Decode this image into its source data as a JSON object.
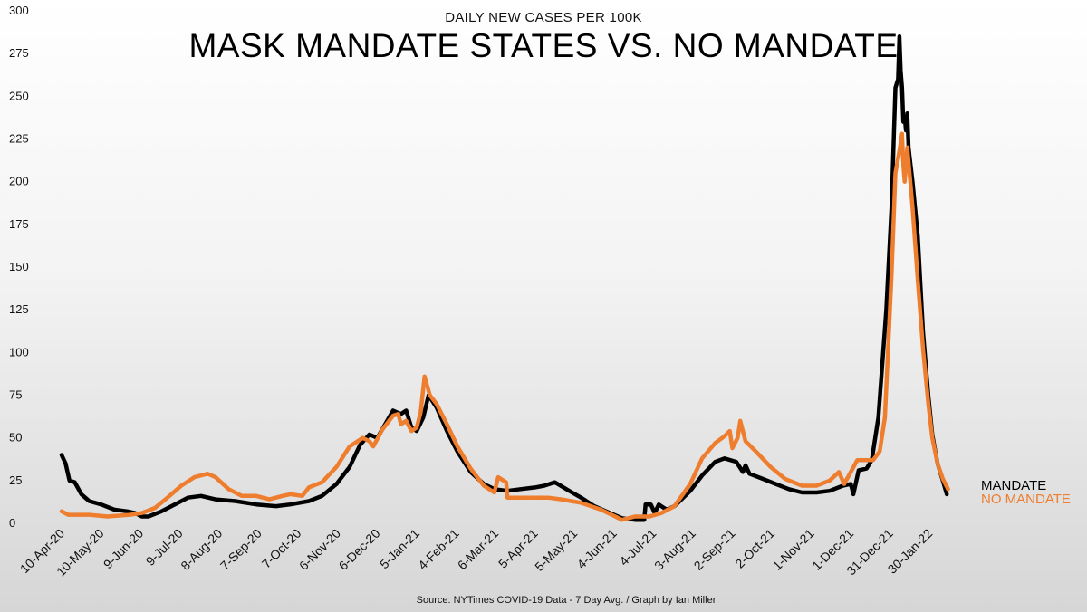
{
  "chart_data": {
    "type": "line",
    "subtitle": "DAILY NEW CASES PER 100K",
    "title": "MASK MANDATE STATES VS. NO MANDATE",
    "source": "Source: NYTimes COVID-19 Data - 7 Day Avg. / Graph by Ian Miller",
    "ylim": [
      0,
      300
    ],
    "y_ticks": [
      0,
      25,
      50,
      75,
      100,
      125,
      150,
      175,
      200,
      225,
      250,
      275,
      300
    ],
    "x_range": [
      "2020-04-10",
      "2022-03-08"
    ],
    "x_ticks": [
      {
        "date": "2020-04-10",
        "label": "10-Apr-20"
      },
      {
        "date": "2020-05-10",
        "label": "10-May-20"
      },
      {
        "date": "2020-06-09",
        "label": "9-Jun-20"
      },
      {
        "date": "2020-07-09",
        "label": "9-Jul-20"
      },
      {
        "date": "2020-08-08",
        "label": "8-Aug-20"
      },
      {
        "date": "2020-09-07",
        "label": "7-Sep-20"
      },
      {
        "date": "2020-10-07",
        "label": "7-Oct-20"
      },
      {
        "date": "2020-11-06",
        "label": "6-Nov-20"
      },
      {
        "date": "2020-12-06",
        "label": "6-Dec-20"
      },
      {
        "date": "2021-01-05",
        "label": "5-Jan-21"
      },
      {
        "date": "2021-02-04",
        "label": "4-Feb-21"
      },
      {
        "date": "2021-03-06",
        "label": "6-Mar-21"
      },
      {
        "date": "2021-04-05",
        "label": "5-Apr-21"
      },
      {
        "date": "2021-05-05",
        "label": "5-May-21"
      },
      {
        "date": "2021-06-04",
        "label": "4-Jun-21"
      },
      {
        "date": "2021-07-04",
        "label": "4-Jul-21"
      },
      {
        "date": "2021-08-03",
        "label": "3-Aug-21"
      },
      {
        "date": "2021-09-02",
        "label": "2-Sep-21"
      },
      {
        "date": "2021-10-02",
        "label": "2-Oct-21"
      },
      {
        "date": "2021-11-01",
        "label": "1-Nov-21"
      },
      {
        "date": "2021-12-01",
        "label": "1-Dec-21"
      },
      {
        "date": "2021-12-31",
        "label": "31-Dec-21"
      },
      {
        "date": "2022-01-30",
        "label": "30-Jan-22"
      }
    ],
    "series": [
      {
        "name": "MANDATE",
        "color": "#000000",
        "points": [
          [
            "2020-04-10",
            40
          ],
          [
            "2020-04-13",
            35
          ],
          [
            "2020-04-16",
            25
          ],
          [
            "2020-04-20",
            24
          ],
          [
            "2020-04-25",
            17
          ],
          [
            "2020-05-01",
            13
          ],
          [
            "2020-05-10",
            11
          ],
          [
            "2020-05-20",
            8
          ],
          [
            "2020-05-30",
            7
          ],
          [
            "2020-06-05",
            6
          ],
          [
            "2020-06-10",
            4
          ],
          [
            "2020-06-15",
            4
          ],
          [
            "2020-06-25",
            7
          ],
          [
            "2020-07-05",
            11
          ],
          [
            "2020-07-15",
            15
          ],
          [
            "2020-07-25",
            16
          ],
          [
            "2020-08-05",
            14
          ],
          [
            "2020-08-20",
            13
          ],
          [
            "2020-09-05",
            11
          ],
          [
            "2020-09-20",
            10
          ],
          [
            "2020-10-01",
            11
          ],
          [
            "2020-10-15",
            13
          ],
          [
            "2020-10-25",
            16
          ],
          [
            "2020-11-05",
            23
          ],
          [
            "2020-11-15",
            33
          ],
          [
            "2020-11-23",
            46
          ],
          [
            "2020-11-30",
            52
          ],
          [
            "2020-12-06",
            50
          ],
          [
            "2020-12-12",
            58
          ],
          [
            "2020-12-18",
            66
          ],
          [
            "2020-12-24",
            64
          ],
          [
            "2020-12-28",
            66
          ],
          [
            "2021-01-01",
            56
          ],
          [
            "2021-01-05",
            54
          ],
          [
            "2021-01-10",
            62
          ],
          [
            "2021-01-14",
            75
          ],
          [
            "2021-01-20",
            68
          ],
          [
            "2021-01-28",
            54
          ],
          [
            "2021-02-05",
            42
          ],
          [
            "2021-02-15",
            30
          ],
          [
            "2021-02-25",
            23
          ],
          [
            "2021-03-05",
            20
          ],
          [
            "2021-03-15",
            19
          ],
          [
            "2021-03-25",
            20
          ],
          [
            "2021-04-05",
            21
          ],
          [
            "2021-04-12",
            22
          ],
          [
            "2021-04-20",
            24
          ],
          [
            "2021-05-01",
            19
          ],
          [
            "2021-05-10",
            15
          ],
          [
            "2021-05-20",
            10
          ],
          [
            "2021-06-01",
            6
          ],
          [
            "2021-06-10",
            3
          ],
          [
            "2021-06-20",
            2
          ],
          [
            "2021-06-27",
            2
          ],
          [
            "2021-06-28",
            11
          ],
          [
            "2021-07-02",
            11
          ],
          [
            "2021-07-05",
            6
          ],
          [
            "2021-07-08",
            11
          ],
          [
            "2021-07-14",
            8
          ],
          [
            "2021-07-20",
            10
          ],
          [
            "2021-08-01",
            19
          ],
          [
            "2021-08-10",
            28
          ],
          [
            "2021-08-20",
            36
          ],
          [
            "2021-08-27",
            38
          ],
          [
            "2021-09-05",
            36
          ],
          [
            "2021-09-10",
            30
          ],
          [
            "2021-09-12",
            34
          ],
          [
            "2021-09-15",
            29
          ],
          [
            "2021-09-25",
            26
          ],
          [
            "2021-10-05",
            23
          ],
          [
            "2021-10-15",
            20
          ],
          [
            "2021-10-25",
            18
          ],
          [
            "2021-11-05",
            18
          ],
          [
            "2021-11-15",
            19
          ],
          [
            "2021-11-25",
            22
          ],
          [
            "2021-12-01",
            23
          ],
          [
            "2021-12-03",
            17
          ],
          [
            "2021-12-07",
            31
          ],
          [
            "2021-12-13",
            32
          ],
          [
            "2021-12-17",
            37
          ],
          [
            "2021-12-22",
            62
          ],
          [
            "2021-12-28",
            125
          ],
          [
            "2022-01-01",
            185
          ],
          [
            "2022-01-04",
            255
          ],
          [
            "2022-01-06",
            260
          ],
          [
            "2022-01-07",
            285
          ],
          [
            "2022-01-08",
            265
          ],
          [
            "2022-01-09",
            255
          ],
          [
            "2022-01-10",
            235
          ],
          [
            "2022-01-11",
            238
          ],
          [
            "2022-01-12",
            230
          ],
          [
            "2022-01-13",
            240
          ],
          [
            "2022-01-14",
            220
          ],
          [
            "2022-01-17",
            200
          ],
          [
            "2022-01-21",
            168
          ],
          [
            "2022-01-25",
            112
          ],
          [
            "2022-01-29",
            75
          ],
          [
            "2022-02-01",
            52
          ],
          [
            "2022-02-05",
            35
          ],
          [
            "2022-02-09",
            25
          ],
          [
            "2022-02-12",
            17
          ]
        ]
      },
      {
        "name": "NO MANDATE",
        "color": "#ee7d2e",
        "points": [
          [
            "2020-04-10",
            7
          ],
          [
            "2020-04-15",
            5
          ],
          [
            "2020-04-20",
            5
          ],
          [
            "2020-05-01",
            5
          ],
          [
            "2020-05-15",
            4
          ],
          [
            "2020-06-01",
            5
          ],
          [
            "2020-06-10",
            6
          ],
          [
            "2020-06-20",
            9
          ],
          [
            "2020-07-01",
            16
          ],
          [
            "2020-07-10",
            22
          ],
          [
            "2020-07-20",
            27
          ],
          [
            "2020-07-30",
            29
          ],
          [
            "2020-08-05",
            27
          ],
          [
            "2020-08-15",
            20
          ],
          [
            "2020-08-25",
            16
          ],
          [
            "2020-09-05",
            16
          ],
          [
            "2020-09-15",
            14
          ],
          [
            "2020-09-25",
            16
          ],
          [
            "2020-10-01",
            17
          ],
          [
            "2020-10-10",
            16
          ],
          [
            "2020-10-15",
            21
          ],
          [
            "2020-10-25",
            24
          ],
          [
            "2020-11-05",
            33
          ],
          [
            "2020-11-15",
            45
          ],
          [
            "2020-11-25",
            50
          ],
          [
            "2020-11-30",
            48
          ],
          [
            "2020-12-03",
            45
          ],
          [
            "2020-12-10",
            55
          ],
          [
            "2020-12-18",
            63
          ],
          [
            "2020-12-22",
            64
          ],
          [
            "2020-12-24",
            58
          ],
          [
            "2020-12-28",
            60
          ],
          [
            "2021-01-01",
            54
          ],
          [
            "2021-01-05",
            56
          ],
          [
            "2021-01-08",
            65
          ],
          [
            "2021-01-11",
            86
          ],
          [
            "2021-01-15",
            75
          ],
          [
            "2021-01-20",
            70
          ],
          [
            "2021-01-28",
            58
          ],
          [
            "2021-02-05",
            45
          ],
          [
            "2021-02-15",
            32
          ],
          [
            "2021-02-25",
            22
          ],
          [
            "2021-03-05",
            18
          ],
          [
            "2021-03-08",
            27
          ],
          [
            "2021-03-14",
            24
          ],
          [
            "2021-03-15",
            15
          ],
          [
            "2021-03-25",
            15
          ],
          [
            "2021-04-05",
            15
          ],
          [
            "2021-04-15",
            15
          ],
          [
            "2021-04-25",
            14
          ],
          [
            "2021-05-10",
            12
          ],
          [
            "2021-05-25",
            8
          ],
          [
            "2021-06-05",
            4
          ],
          [
            "2021-06-10",
            2
          ],
          [
            "2021-06-20",
            4
          ],
          [
            "2021-07-01",
            4
          ],
          [
            "2021-07-10",
            6
          ],
          [
            "2021-07-20",
            10
          ],
          [
            "2021-08-01",
            23
          ],
          [
            "2021-08-10",
            38
          ],
          [
            "2021-08-20",
            47
          ],
          [
            "2021-08-27",
            51
          ],
          [
            "2021-08-31",
            54
          ],
          [
            "2021-09-02",
            44
          ],
          [
            "2021-09-06",
            50
          ],
          [
            "2021-09-08",
            60
          ],
          [
            "2021-09-12",
            48
          ],
          [
            "2021-09-20",
            42
          ],
          [
            "2021-10-01",
            33
          ],
          [
            "2021-10-12",
            26
          ],
          [
            "2021-10-25",
            22
          ],
          [
            "2021-11-05",
            22
          ],
          [
            "2021-11-15",
            25
          ],
          [
            "2021-11-22",
            30
          ],
          [
            "2021-11-26",
            23
          ],
          [
            "2021-12-01",
            30
          ],
          [
            "2021-12-06",
            37
          ],
          [
            "2021-12-15",
            37
          ],
          [
            "2021-12-18",
            37
          ],
          [
            "2021-12-23",
            42
          ],
          [
            "2021-12-27",
            62
          ],
          [
            "2022-01-01",
            145
          ],
          [
            "2022-01-04",
            205
          ],
          [
            "2022-01-07",
            218
          ],
          [
            "2022-01-09",
            228
          ],
          [
            "2022-01-10",
            210
          ],
          [
            "2022-01-11",
            200
          ],
          [
            "2022-01-13",
            220
          ],
          [
            "2022-01-17",
            185
          ],
          [
            "2022-01-21",
            142
          ],
          [
            "2022-01-25",
            102
          ],
          [
            "2022-01-29",
            70
          ],
          [
            "2022-02-01",
            50
          ],
          [
            "2022-02-05",
            35
          ],
          [
            "2022-02-09",
            26
          ],
          [
            "2022-02-13",
            20
          ]
        ]
      }
    ],
    "line_labels": [
      "MANDATE",
      "NO MANDATE"
    ]
  }
}
